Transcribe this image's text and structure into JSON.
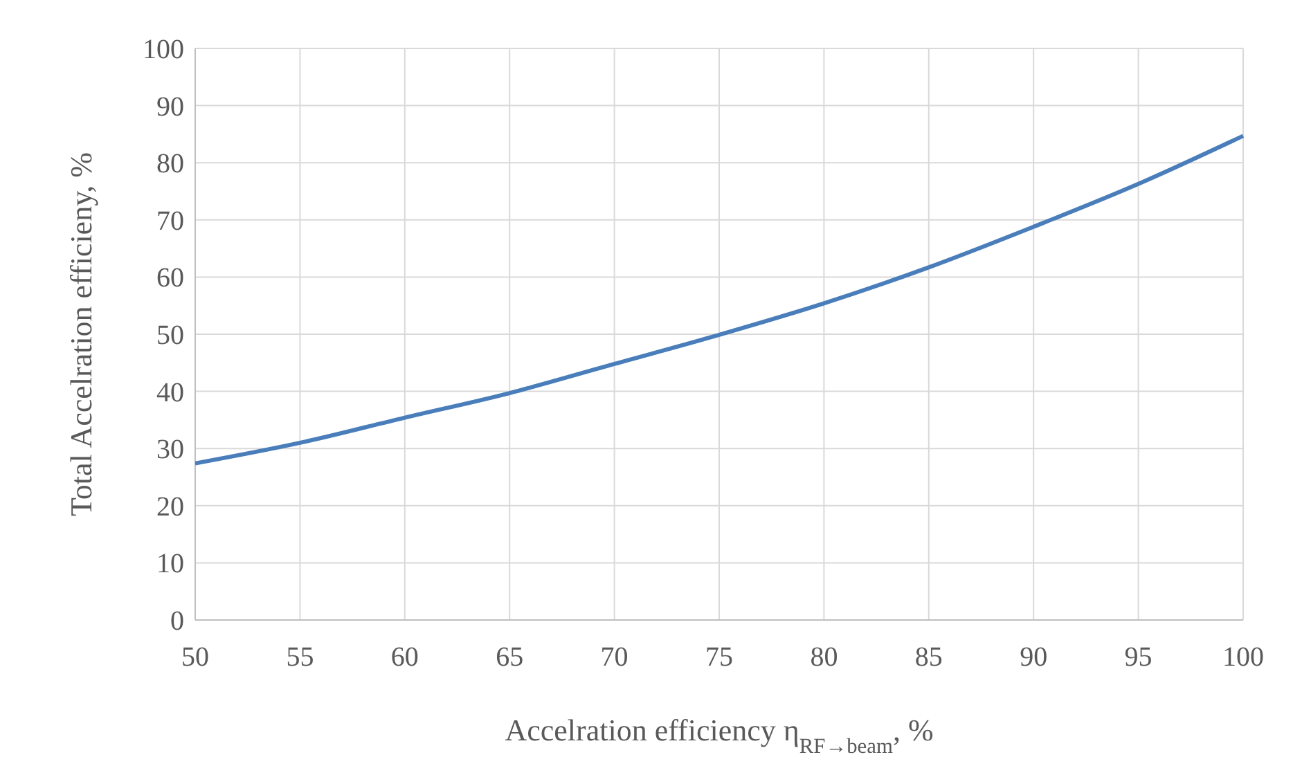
{
  "chart_data": {
    "type": "line",
    "xlabel": "Accelration efficiency η$_{RF→beam}$, %",
    "ylabel": "Total Accelration efficieny, %",
    "x": [
      50,
      55,
      60,
      65,
      70,
      75,
      80,
      85,
      90,
      95,
      100
    ],
    "series": [
      {
        "color": "#4a7ebb",
        "values": [
          27.4,
          31,
          35.4,
          39.7,
          44.8,
          49.9,
          55.4,
          61.7,
          68.8,
          76.3,
          84.7
        ]
      }
    ],
    "xlim": [
      50,
      100
    ],
    "xticks": [
      50,
      55,
      60,
      65,
      70,
      75,
      80,
      85,
      90,
      95,
      100
    ],
    "ylim": [
      0,
      100
    ],
    "yticks": [
      0,
      10,
      20,
      30,
      40,
      50,
      60,
      70,
      80,
      90,
      100
    ],
    "grid": true,
    "marker": "none",
    "line_style": "solid"
  }
}
